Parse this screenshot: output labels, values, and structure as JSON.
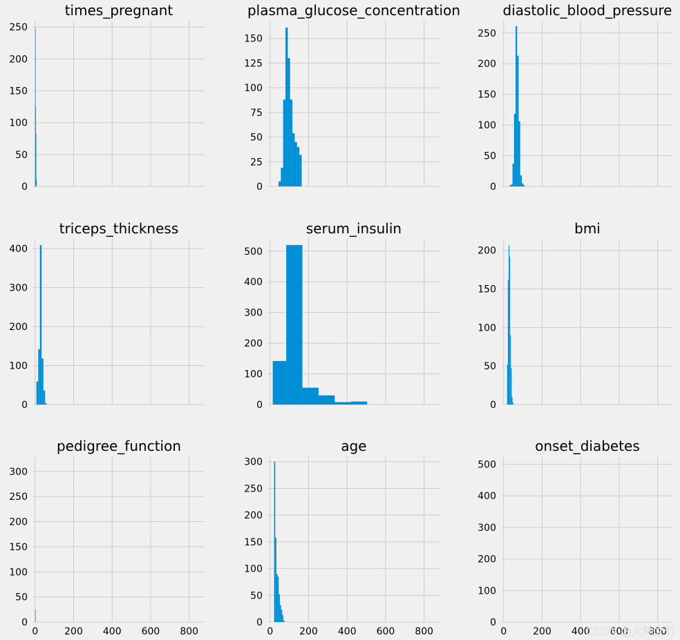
{
  "colors": {
    "background": "#f0f0f0",
    "bar": "#008fd5",
    "grid": "#cbcbcb"
  },
  "watermark": "CSDN @大地之灯",
  "chart_data": [
    {
      "type": "bar",
      "title": "times_pregnant",
      "xlim": [
        -10,
        880
      ],
      "ylim": [
        0,
        260
      ],
      "yticks": [
        0,
        50,
        100,
        150,
        200,
        250
      ],
      "xticks": [
        0,
        200,
        400,
        600,
        800
      ],
      "show_xticklabels": false,
      "bins": [
        [
          0,
          1.7,
          248
        ],
        [
          1.7,
          3.4,
          125
        ],
        [
          3.4,
          5.1,
          83
        ],
        [
          5.1,
          6.8,
          11
        ]
      ]
    },
    {
      "type": "bar",
      "title": "plasma_glucose_concentration",
      "xlim": [
        -10,
        880
      ],
      "ylim": [
        0,
        168
      ],
      "yticks": [
        0,
        25,
        50,
        75,
        100,
        125,
        150
      ],
      "xticks": [
        0,
        200,
        400,
        600,
        800
      ],
      "show_xticklabels": false,
      "bins": [
        [
          44,
          56,
          5
        ],
        [
          56,
          68,
          19
        ],
        [
          68,
          80,
          88
        ],
        [
          80,
          92,
          161
        ],
        [
          92,
          104,
          130
        ],
        [
          104,
          116,
          88
        ],
        [
          116,
          128,
          54
        ],
        [
          128,
          140,
          45
        ],
        [
          140,
          152,
          40
        ],
        [
          152,
          164,
          32
        ]
      ]
    },
    {
      "type": "bar",
      "title": "diastolic_blood_pressure",
      "xlim": [
        -10,
        880
      ],
      "ylim": [
        0,
        270
      ],
      "yticks": [
        0,
        50,
        100,
        150,
        200,
        250
      ],
      "xticks": [
        0,
        200,
        400,
        600,
        800
      ],
      "show_xticklabels": false,
      "bins": [
        [
          30,
          38,
          2
        ],
        [
          38,
          46,
          3
        ],
        [
          46,
          54,
          37
        ],
        [
          54,
          62,
          118
        ],
        [
          62,
          70,
          261
        ],
        [
          70,
          78,
          213
        ],
        [
          78,
          86,
          106
        ],
        [
          86,
          94,
          18
        ],
        [
          94,
          102,
          5
        ],
        [
          102,
          110,
          2
        ]
      ]
    },
    {
      "type": "bar",
      "title": "triceps_thickness",
      "xlim": [
        -10,
        880
      ],
      "ylim": [
        0,
        425
      ],
      "yticks": [
        0,
        100,
        200,
        300,
        400
      ],
      "xticks": [
        0,
        200,
        400,
        600,
        800
      ],
      "show_xticklabels": false,
      "bins": [
        [
          7,
          16,
          59
        ],
        [
          16,
          25,
          142
        ],
        [
          25,
          34,
          409
        ],
        [
          34,
          43,
          118
        ],
        [
          43,
          52,
          36
        ],
        [
          52,
          61,
          3
        ]
      ]
    },
    {
      "type": "bar",
      "title": "serum_insulin",
      "xlim": [
        -10,
        880
      ],
      "ylim": [
        0,
        540
      ],
      "yticks": [
        0,
        100,
        200,
        300,
        400,
        500
      ],
      "xticks": [
        0,
        200,
        400,
        600,
        800
      ],
      "show_xticklabels": false,
      "bins": [
        [
          14,
          84,
          142
        ],
        [
          84,
          168,
          520
        ],
        [
          168,
          252,
          55
        ],
        [
          252,
          336,
          30
        ],
        [
          336,
          420,
          8
        ],
        [
          420,
          504,
          10
        ]
      ]
    },
    {
      "type": "bar",
      "title": "bmi",
      "xlim": [
        -10,
        880
      ],
      "ylim": [
        0,
        215
      ],
      "yticks": [
        0,
        50,
        100,
        150,
        200
      ],
      "xticks": [
        0,
        200,
        400,
        600,
        800
      ],
      "show_xticklabels": false,
      "bins": [
        [
          18,
          22,
          52
        ],
        [
          22,
          26,
          162
        ],
        [
          26,
          30,
          207
        ],
        [
          30,
          34,
          192
        ],
        [
          34,
          38,
          90
        ],
        [
          38,
          42,
          47
        ],
        [
          42,
          46,
          10
        ],
        [
          46,
          50,
          3
        ]
      ]
    },
    {
      "type": "bar",
      "title": "pedigree_function",
      "xlim": [
        -10,
        880
      ],
      "ylim": [
        0,
        330
      ],
      "yticks": [
        0,
        50,
        100,
        150,
        200,
        250,
        300
      ],
      "xticks": [
        0,
        200,
        400,
        600,
        800
      ],
      "show_xticklabels": true,
      "bins": [
        [
          0,
          2.5,
          25
        ]
      ]
    },
    {
      "type": "bar",
      "title": "age",
      "xlim": [
        -10,
        880
      ],
      "ylim": [
        0,
        310
      ],
      "yticks": [
        0,
        50,
        100,
        150,
        200,
        250,
        300
      ],
      "xticks": [
        0,
        200,
        400,
        600,
        800
      ],
      "show_xticklabels": true,
      "bins": [
        [
          21,
          27,
          300
        ],
        [
          27,
          33,
          158
        ],
        [
          33,
          39,
          90
        ],
        [
          39,
          45,
          85
        ],
        [
          45,
          51,
          52
        ],
        [
          51,
          57,
          32
        ],
        [
          57,
          63,
          23
        ],
        [
          63,
          69,
          13
        ],
        [
          69,
          75,
          3
        ]
      ]
    },
    {
      "type": "bar",
      "title": "onset_diabetes",
      "xlim": [
        -10,
        880
      ],
      "ylim": [
        0,
        525
      ],
      "yticks": [
        0,
        100,
        200,
        300,
        400,
        500
      ],
      "xticks": [
        0,
        200,
        400,
        600,
        800
      ],
      "show_xticklabels": true,
      "bins": []
    }
  ]
}
